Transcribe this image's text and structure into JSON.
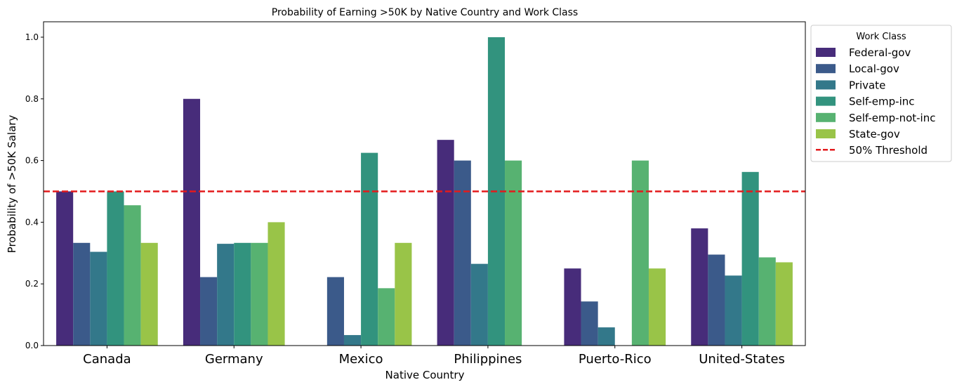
{
  "chart_data": {
    "type": "bar",
    "title": "Probability of Earning >50K by Native Country and Work Class",
    "xlabel": "Native Country",
    "ylabel": "Probability of >50K Salary",
    "ylim": [
      0,
      1.05
    ],
    "yticks": [
      0.0,
      0.2,
      0.4,
      0.6,
      0.8,
      1.0
    ],
    "ytick_labels": [
      "0.0",
      "0.2",
      "0.4",
      "0.6",
      "0.8",
      "1.0"
    ],
    "categories": [
      "Canada",
      "Germany",
      "Mexico",
      "Philippines",
      "Puerto-Rico",
      "United-States"
    ],
    "legend_title": "Work Class",
    "legend_position": "outside-top-right",
    "grid": false,
    "series": [
      {
        "name": "Federal-gov",
        "color": "#472c7a",
        "values": [
          0.5,
          0.8,
          null,
          0.667,
          0.25,
          0.38
        ]
      },
      {
        "name": "Local-gov",
        "color": "#3b5a8a",
        "values": [
          0.333,
          0.222,
          0.222,
          0.6,
          0.143,
          0.295
        ]
      },
      {
        "name": "Private",
        "color": "#33788a",
        "values": [
          0.304,
          0.33,
          0.034,
          0.265,
          0.059,
          0.227
        ]
      },
      {
        "name": "Self-emp-inc",
        "color": "#32937e",
        "values": [
          0.5,
          0.333,
          0.625,
          1.0,
          null,
          0.563
        ]
      },
      {
        "name": "Self-emp-not-inc",
        "color": "#57b271",
        "values": [
          0.455,
          0.333,
          0.186,
          0.6,
          0.6,
          0.286
        ]
      },
      {
        "name": "State-gov",
        "color": "#99c448",
        "values": [
          0.333,
          0.4,
          0.333,
          null,
          0.25,
          0.27
        ]
      }
    ],
    "threshold": {
      "label": "50% Threshold",
      "value": 0.5,
      "color": "#e31a1c"
    }
  }
}
